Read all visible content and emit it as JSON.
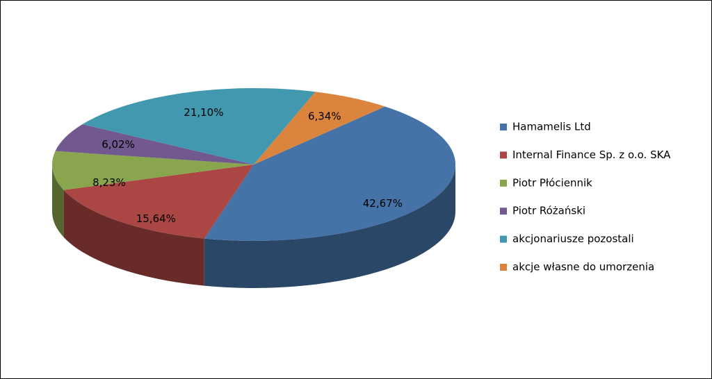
{
  "chart_data": {
    "type": "pie",
    "categories": [
      "Hamamelis Ltd",
      "Internal Finance Sp. z o.o. SKA",
      "Piotr Płóciennik",
      "Piotr Różański",
      "akcjonariusze pozostali",
      "akcje własne do umorzenia"
    ],
    "values": [
      42.67,
      15.64,
      8.23,
      6.02,
      21.1,
      6.34
    ],
    "value_labels": [
      "42,67%",
      "15,64%",
      "8,23%",
      "6,02%",
      "21,10%",
      "6,34%"
    ],
    "colors": [
      "#4572a7",
      "#aa4643",
      "#89a54e",
      "#71588f",
      "#4198af",
      "#db843d"
    ]
  }
}
